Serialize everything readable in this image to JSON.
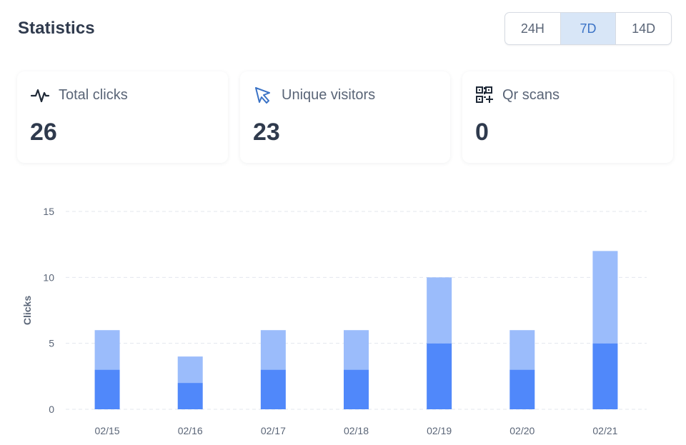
{
  "header": {
    "title": "Statistics",
    "ranges": [
      {
        "label": "24H",
        "active": false
      },
      {
        "label": "7D",
        "active": true
      },
      {
        "label": "14D",
        "active": false
      }
    ]
  },
  "stats": [
    {
      "label": "Total clicks",
      "value": "26",
      "icon": "activity-pulse-icon"
    },
    {
      "label": "Unique visitors",
      "value": "23",
      "icon": "cursor-arrow-icon"
    },
    {
      "label": "Qr scans",
      "value": "0",
      "icon": "qr-code-icon"
    }
  ],
  "colors": {
    "accent": "#3b73c6",
    "bar_dark": "#5088fa",
    "bar_light": "#9bbcfb"
  },
  "chart_data": {
    "type": "bar",
    "stacked": true,
    "categories": [
      "02/15",
      "02/16",
      "02/17",
      "02/18",
      "02/19",
      "02/20",
      "02/21"
    ],
    "series": [
      {
        "values": [
          3,
          2,
          3,
          3,
          5,
          3,
          5
        ],
        "color": "#5088fa"
      },
      {
        "values": [
          3,
          2,
          3,
          3,
          5,
          3,
          7
        ],
        "color": "#9bbcfb"
      }
    ],
    "ylabel": "Clicks",
    "ylim": [
      0,
      15
    ],
    "yticks": [
      0,
      5,
      10,
      15
    ],
    "grid": true
  }
}
